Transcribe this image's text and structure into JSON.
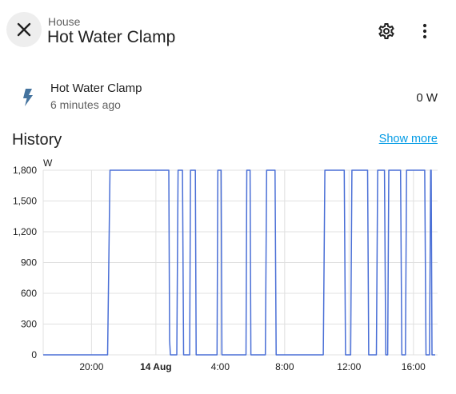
{
  "header": {
    "breadcrumb": "House",
    "title": "Hot Water Clamp",
    "close_icon": "close-icon",
    "settings_icon": "gear-icon",
    "more_icon": "more-vertical-icon"
  },
  "entity": {
    "icon": "lightning-bolt-icon",
    "name": "Hot Water Clamp",
    "last_changed": "6 minutes ago",
    "state": "0 W"
  },
  "history": {
    "title": "History",
    "show_more": "Show more"
  },
  "colors": {
    "accent": "#039be5",
    "series": "#4a6fd6",
    "icon": "#44739e"
  },
  "chart_data": {
    "type": "line",
    "ylabel": "W",
    "ylim": [
      0,
      1800
    ],
    "yticks": [
      0,
      300,
      600,
      900,
      1200,
      1500,
      1800
    ],
    "ytick_labels": [
      "0",
      "300",
      "600",
      "900",
      "1,200",
      "1,500",
      "1,800"
    ],
    "xlim": [
      17.0,
      41.5
    ],
    "xticks": [
      20,
      24,
      28,
      32,
      36,
      40
    ],
    "xtick_labels": [
      "20:00",
      "14 Aug",
      "4:00",
      "8:00",
      "12:00",
      "16:00"
    ],
    "bold_tick": "14 Aug",
    "grid": true,
    "series": [
      {
        "x": [
          17.0,
          21.0,
          21.15,
          24.8,
          24.85,
          24.9,
          25.3,
          25.38,
          25.65,
          25.72,
          26.1,
          26.15,
          26.45,
          26.5,
          27.8,
          27.85,
          28.05,
          28.1,
          29.6,
          29.65,
          29.85,
          29.9,
          30.8,
          30.88,
          31.4,
          31.47,
          34.4,
          34.5,
          35.7,
          35.78,
          36.1,
          36.18,
          37.15,
          37.22,
          37.7,
          37.78,
          38.2,
          38.28,
          38.4,
          38.47,
          39.2,
          39.28,
          39.5,
          39.57,
          40.7,
          40.78,
          41.0,
          41.07,
          41.1,
          41.15,
          41.3,
          41.35
        ],
        "y": [
          0,
          0,
          1800,
          1800,
          140,
          0,
          0,
          1800,
          1800,
          0,
          0,
          1800,
          1800,
          0,
          0,
          1800,
          1800,
          0,
          0,
          1800,
          1800,
          0,
          0,
          1800,
          1800,
          0,
          0,
          1800,
          1800,
          0,
          0,
          1800,
          1800,
          0,
          0,
          1800,
          1800,
          0,
          0,
          1800,
          1800,
          0,
          0,
          1800,
          1800,
          0,
          0,
          1800,
          1800,
          0,
          0,
          0
        ]
      }
    ]
  }
}
